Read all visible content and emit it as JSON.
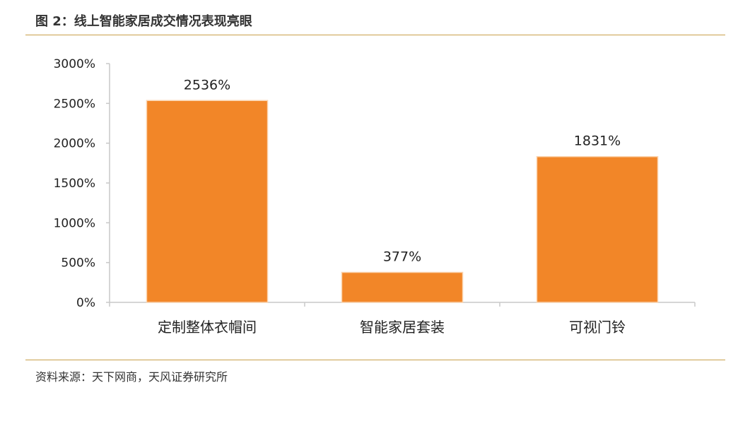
{
  "figure": {
    "title": "图 2：线上智能家居成交情况表现亮眼",
    "source": "资料来源：天下网商，天风证券研究所"
  },
  "colors": {
    "bar": "#f28628",
    "bar_stroke": "#fbd4b0",
    "axis": "#c8c8c8",
    "rule": "#c8a04a"
  },
  "chart_data": {
    "type": "bar",
    "categories": [
      "定制整体衣帽间",
      "智能家居套装",
      "可视门铃"
    ],
    "values": [
      2536,
      377,
      1831
    ],
    "data_labels": [
      "2536%",
      "377%",
      "1831%"
    ],
    "y_ticks": [
      "0%",
      "500%",
      "1000%",
      "1500%",
      "2000%",
      "2500%",
      "3000%"
    ],
    "ylim": [
      0,
      3000
    ],
    "unit": "%",
    "grid": false,
    "legend": "none"
  }
}
